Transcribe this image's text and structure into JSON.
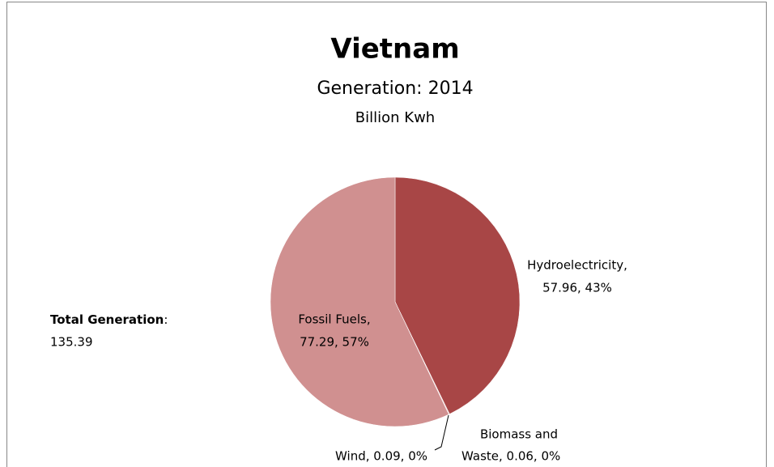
{
  "chart_data": {
    "type": "pie",
    "title": "Vietnam",
    "subtitle": "Generation: 2014",
    "unit_label": "Billion Kwh",
    "values": [
      57.96,
      0.06,
      0.09,
      77.29
    ],
    "value_labels": [
      [
        "Hydroelectricity,",
        "57.96, 43%"
      ],
      [
        "Biomass  and",
        "Waste, 0.06, 0%"
      ],
      [
        "Wind, 0.09, 0%"
      ],
      [
        "Fossil Fuels,",
        "77.29, 57%"
      ]
    ],
    "colors": [
      "#a84646",
      "#c96464",
      "#d88a8a",
      "#d09090"
    ],
    "total": {
      "label": "Total Generation",
      "punct": ":",
      "value": 135.39
    }
  }
}
